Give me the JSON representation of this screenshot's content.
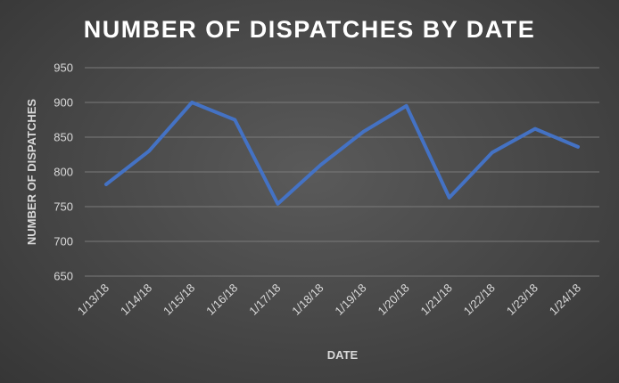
{
  "chart_data": {
    "type": "line",
    "title": "NUMBER OF DISPATCHES BY DATE",
    "xlabel": "DATE",
    "ylabel": "NUMBER OF DISPATCHES",
    "categories": [
      "1/13/18",
      "1/14/18",
      "1/15/18",
      "1/16/18",
      "1/17/18",
      "1/18/18",
      "1/19/18",
      "1/20/18",
      "1/21/18",
      "1/22/18",
      "1/23/18",
      "1/24/18"
    ],
    "series": [
      {
        "values": [
          782,
          830,
          900,
          875,
          754,
          810,
          858,
          895,
          763,
          828,
          862,
          836
        ]
      }
    ],
    "ylim": [
      650,
      950
    ],
    "yticks": [
      650,
      700,
      750,
      800,
      850,
      900,
      950
    ],
    "grid": true,
    "legend": "none"
  },
  "colors": {
    "line": "#4472c4",
    "background": "#474747",
    "text": "#d9d9d9",
    "title": "#ffffff",
    "grid": "#7a7a7a"
  }
}
